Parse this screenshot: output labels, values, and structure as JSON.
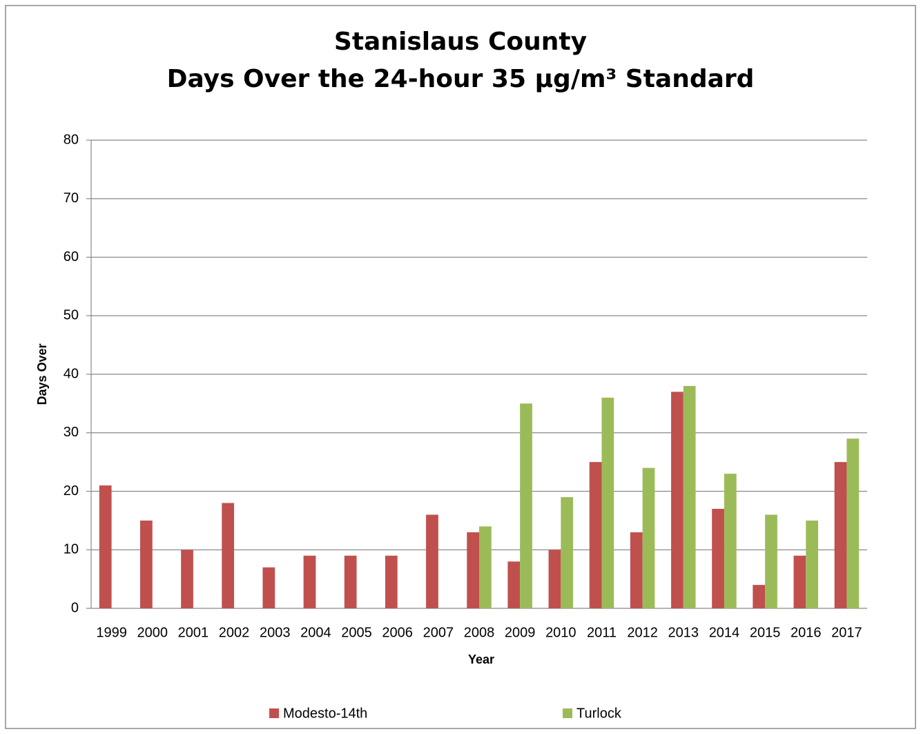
{
  "chart_data": {
    "type": "bar",
    "title": [
      "Stanislaus County",
      "Days Over the 24-hour 35 µg/m³ Standard"
    ],
    "x_label": "Year",
    "y_label": "Days Over",
    "categories": [
      "1999",
      "2000",
      "2001",
      "2002",
      "2003",
      "2004",
      "2005",
      "2006",
      "2007",
      "2008",
      "2009",
      "2010",
      "2011",
      "2012",
      "2013",
      "2014",
      "2015",
      "2016",
      "2017"
    ],
    "series": [
      {
        "name": "Modesto-14th",
        "color": "#c0504d",
        "values": [
          21,
          15,
          10,
          18,
          7,
          9,
          9,
          9,
          16,
          13,
          8,
          10,
          25,
          13,
          37,
          17,
          4,
          9,
          25
        ]
      },
      {
        "name": "Turlock",
        "color": "#9bbb59",
        "values": [
          null,
          null,
          null,
          null,
          null,
          null,
          null,
          null,
          null,
          14,
          35,
          19,
          36,
          24,
          38,
          23,
          16,
          15,
          29
        ]
      }
    ],
    "ylim": [
      0,
      80
    ],
    "yticks": [
      0,
      10,
      20,
      30,
      40,
      50,
      60,
      70,
      80
    ],
    "grid": true,
    "legend": "bottom"
  }
}
